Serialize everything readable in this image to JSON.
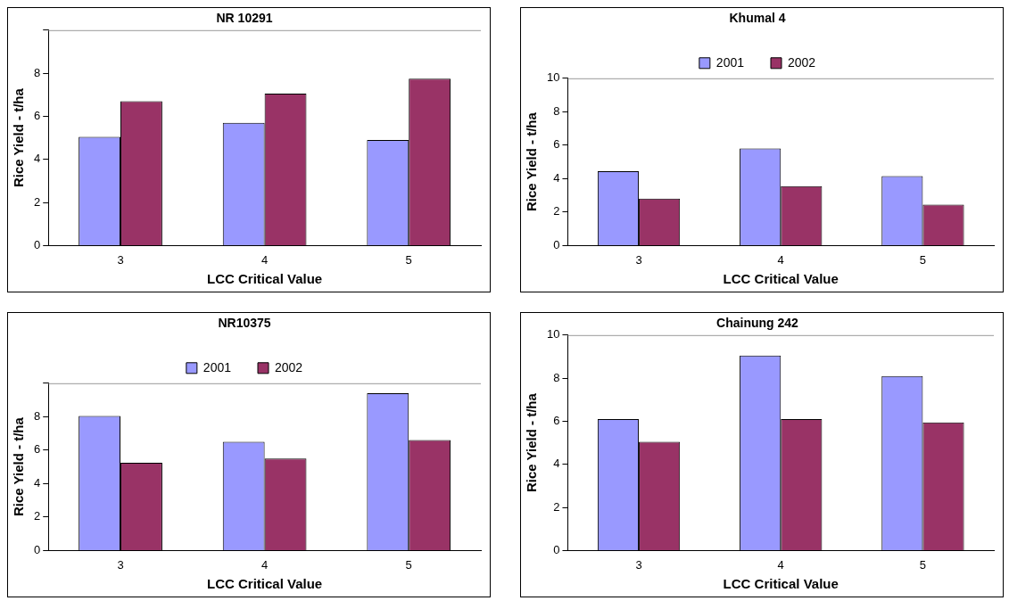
{
  "chart_data": [
    {
      "type": "bar",
      "title": "NR 10291",
      "xlabel": "LCC Critical Value",
      "ylabel": "Rice Yield - t/ha",
      "categories": [
        "3",
        "4",
        "5"
      ],
      "series": [
        {
          "color": "#9999ff",
          "values": [
            5.05,
            5.7,
            4.9
          ]
        },
        {
          "color": "#993366",
          "values": [
            6.7,
            7.05,
            7.75
          ]
        }
      ],
      "ylim": [
        0,
        10
      ],
      "yticks": [
        0,
        2,
        4,
        6,
        8,
        {
          "value": 10,
          "label": null
        }
      ],
      "grid": false,
      "legend": false
    },
    {
      "type": "bar",
      "title": "Khumal 4",
      "xlabel": "LCC Critical Value",
      "ylabel": "Rice Yield - t/ha",
      "categories": [
        "3",
        "4",
        "5"
      ],
      "series": [
        {
          "name": "2001",
          "color": "#9999ff",
          "values": [
            4.45,
            5.8,
            4.15
          ]
        },
        {
          "name": "2002",
          "color": "#993366",
          "values": [
            2.8,
            3.55,
            2.45
          ]
        }
      ],
      "ylim": [
        0,
        10
      ],
      "yticks": [
        0,
        2,
        4,
        6,
        8,
        10
      ],
      "grid": false,
      "legend": "top"
    },
    {
      "type": "bar",
      "title": "NR10375",
      "xlabel": "LCC Critical Value",
      "ylabel": "Rice Yield - t/ha",
      "categories": [
        "3",
        "4",
        "5"
      ],
      "series": [
        {
          "name": "2001",
          "color": "#9999ff",
          "values": [
            8.05,
            6.5,
            9.4
          ]
        },
        {
          "name": "2002",
          "color": "#993366",
          "values": [
            5.25,
            5.5,
            6.6
          ]
        }
      ],
      "ylim": [
        0,
        10
      ],
      "yticks": [
        0,
        2,
        4,
        6,
        8,
        {
          "value": 10,
          "label": null
        }
      ],
      "grid": false,
      "legend": "top"
    },
    {
      "type": "bar",
      "title": "Chainung 242",
      "xlabel": "LCC Critical Value",
      "ylabel": "Rice Yield - t/ha",
      "categories": [
        "3",
        "4",
        "5"
      ],
      "series": [
        {
          "name": "2001",
          "color": "#9999ff",
          "values": [
            6.1,
            9.05,
            8.1
          ]
        },
        {
          "name": "2002",
          "color": "#993366",
          "values": [
            5.05,
            6.1,
            5.95
          ]
        }
      ],
      "ylim": [
        0,
        10
      ],
      "yticks": [
        0,
        2,
        4,
        6,
        8,
        10
      ],
      "grid": false,
      "legend": false
    }
  ]
}
